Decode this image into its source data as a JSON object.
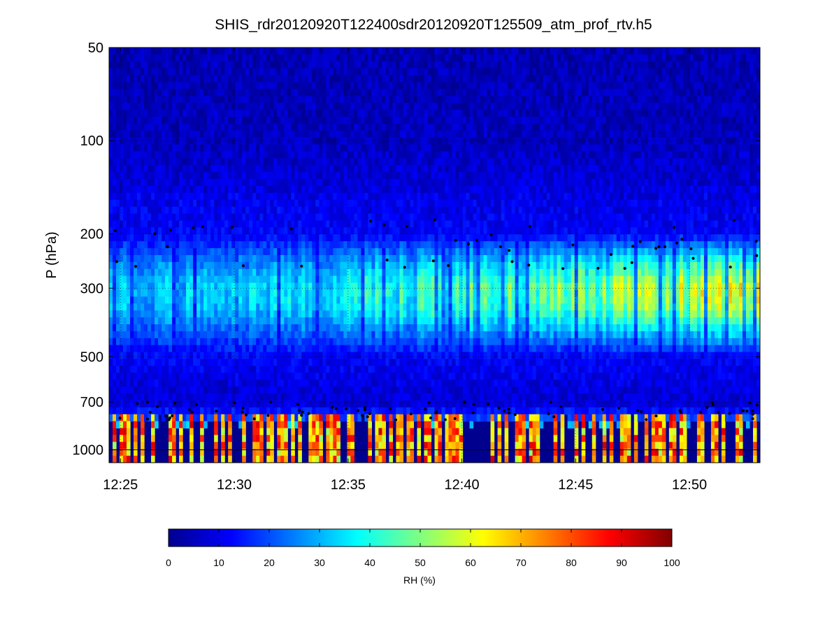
{
  "chart_data": {
    "type": "heatmap",
    "title": "SHIS_rdr20120920T122400sdr20120920T125509_atm_prof_rtv.h5",
    "xlabel": "",
    "ylabel": "P (hPa)",
    "x_ticks": [
      "12:25",
      "12:30",
      "12:35",
      "12:40",
      "12:45",
      "12:50"
    ],
    "x_tick_minutes": [
      25,
      30,
      35,
      40,
      45,
      50
    ],
    "xlim_minutes": [
      24.5,
      53.1
    ],
    "y_scale": "log",
    "ylim": [
      50,
      1100
    ],
    "y_ticks": [
      50,
      100,
      200,
      300,
      500,
      700,
      1000
    ],
    "y_tick_labels": [
      "50",
      "100",
      "200",
      "300",
      "500",
      "700",
      "1000"
    ],
    "grid": true,
    "reference_line_pressure": 1000,
    "colorbar": {
      "label": "RH (%)",
      "range": [
        0,
        100
      ],
      "ticks": [
        "0",
        "10",
        "20",
        "30",
        "40",
        "50",
        "60",
        "70",
        "80",
        "90",
        "100"
      ],
      "colormap": "jet",
      "placement": "bottom"
    },
    "rh_profile_summary": {
      "pressure_hPa": [
        50,
        100,
        200,
        250,
        300,
        350,
        500,
        700,
        800,
        900,
        1000
      ],
      "rh_percent_typical": [
        5,
        6,
        12,
        35,
        48,
        44,
        12,
        8,
        20,
        60,
        75
      ]
    },
    "surface_cutoff_hPa": 780,
    "marker_color": "#000000",
    "notes_colors": {
      "background_low": "#00008f",
      "moist_layer": "#ffff00",
      "saturated": "#d40000"
    }
  }
}
